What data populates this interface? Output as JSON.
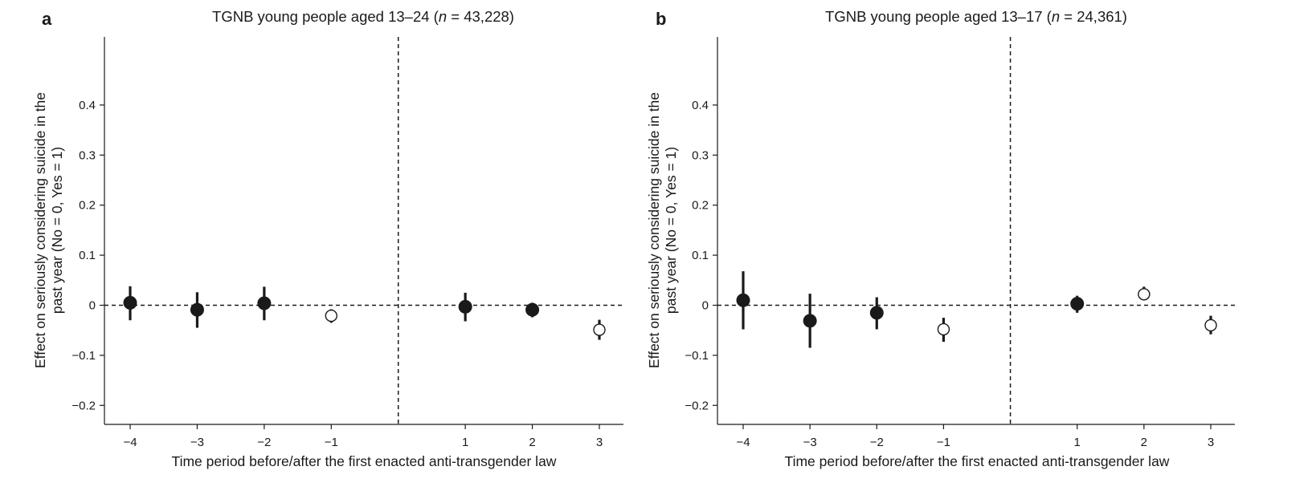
{
  "colors": {
    "ink": "#1a1a1a",
    "filled_marker": "#1a1a1a",
    "open_marker_fill": "#ffffff"
  },
  "chart_data": [
    {
      "type": "scatter",
      "panel_label": "a",
      "title_main": "TGNB young people aged 13–24 (",
      "title_n": "n",
      "title_rest": " = 43,228)",
      "xlabel": "Time period before/after the first enacted anti-transgender law",
      "ylabel_line1": "Effect on seriously considering suicide in the",
      "ylabel_line2": "past year (No = 0, Yes = 1)",
      "ylim": [
        -0.23,
        0.53
      ],
      "yticks": [
        -0.2,
        -0.1,
        0,
        0.1,
        0.2,
        0.3,
        0.4
      ],
      "ytick_labels": [
        "−0.2",
        "−0.1",
        "0",
        "0.1",
        "0.2",
        "0.3",
        "0.4"
      ],
      "xticks": [
        -4,
        -3,
        -2,
        -1,
        1,
        2,
        3
      ],
      "xtick_labels": [
        "−4",
        "−3",
        "−2",
        "−1",
        "1",
        "2",
        "3"
      ],
      "reference_lines": {
        "horizontal_dashed_at_y": 0,
        "vertical_dashed_at_x": 0
      },
      "points": [
        {
          "x": -4,
          "y": 0.005,
          "ci_low": -0.03,
          "ci_high": 0.038,
          "marker": "filled"
        },
        {
          "x": -3,
          "y": -0.009,
          "ci_low": -0.045,
          "ci_high": 0.026,
          "marker": "filled"
        },
        {
          "x": -2,
          "y": 0.004,
          "ci_low": -0.03,
          "ci_high": 0.037,
          "marker": "filled"
        },
        {
          "x": -1,
          "y": -0.021,
          "ci_low": -0.035,
          "ci_high": -0.008,
          "marker": "open"
        },
        {
          "x": 1,
          "y": -0.003,
          "ci_low": -0.032,
          "ci_high": 0.025,
          "marker": "filled"
        },
        {
          "x": 2,
          "y": -0.009,
          "ci_low": -0.024,
          "ci_high": 0.005,
          "marker": "filled"
        },
        {
          "x": 3,
          "y": -0.049,
          "ci_low": -0.069,
          "ci_high": -0.029,
          "marker": "open"
        }
      ]
    },
    {
      "type": "scatter",
      "panel_label": "b",
      "title_main": "TGNB young people aged 13–17 (",
      "title_n": "n",
      "title_rest": " = 24,361)",
      "xlabel": "Time period before/after the first enacted anti-transgender law",
      "ylabel_line1": "Effect on seriously considering suicide in the",
      "ylabel_line2": "past year (No = 0, Yes = 1)",
      "ylim": [
        -0.23,
        0.53
      ],
      "yticks": [
        -0.2,
        -0.1,
        0,
        0.1,
        0.2,
        0.3,
        0.4
      ],
      "ytick_labels": [
        "−0.2",
        "−0.1",
        "0",
        "0.1",
        "0.2",
        "0.3",
        "0.4"
      ],
      "xticks": [
        -4,
        -3,
        -2,
        -1,
        1,
        2,
        3
      ],
      "xtick_labels": [
        "−4",
        "−3",
        "−2",
        "−1",
        "1",
        "2",
        "3"
      ],
      "reference_lines": {
        "horizontal_dashed_at_y": 0,
        "vertical_dashed_at_x": 0
      },
      "points": [
        {
          "x": -4,
          "y": 0.01,
          "ci_low": -0.048,
          "ci_high": 0.068,
          "marker": "filled"
        },
        {
          "x": -3,
          "y": -0.031,
          "ci_low": -0.085,
          "ci_high": 0.023,
          "marker": "filled"
        },
        {
          "x": -2,
          "y": -0.015,
          "ci_low": -0.048,
          "ci_high": 0.016,
          "marker": "filled"
        },
        {
          "x": -1,
          "y": -0.048,
          "ci_low": -0.073,
          "ci_high": -0.025,
          "marker": "open"
        },
        {
          "x": 1,
          "y": 0.003,
          "ci_low": -0.015,
          "ci_high": 0.019,
          "marker": "filled"
        },
        {
          "x": 2,
          "y": 0.022,
          "ci_low": 0.01,
          "ci_high": 0.037,
          "marker": "open"
        },
        {
          "x": 3,
          "y": -0.04,
          "ci_low": -0.058,
          "ci_high": -0.021,
          "marker": "open"
        }
      ]
    }
  ]
}
